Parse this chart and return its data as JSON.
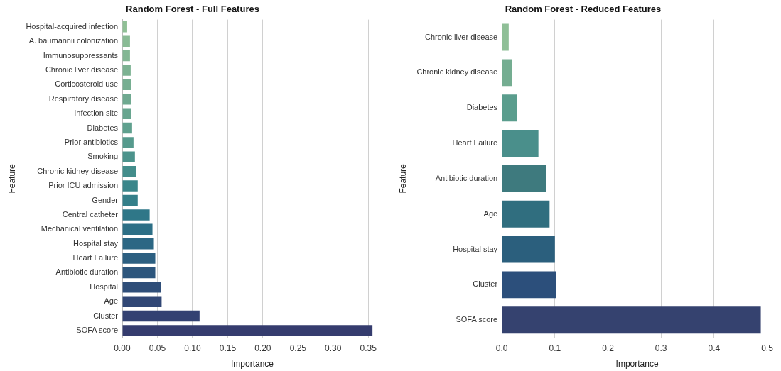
{
  "chart_data": [
    {
      "type": "bar",
      "orientation": "horizontal",
      "title": "Random Forest - Full Features",
      "xlabel": "Importance",
      "ylabel": "Feature",
      "grid": "x",
      "categories": [
        "Hospital-acquired infection",
        "A. baumannii colonization",
        "Immunosuppressants",
        "Chronic liver disease",
        "Corticosteroid use",
        "Respiratory disease",
        "Infection site",
        "Diabetes",
        "Prior antibiotics",
        "Smoking",
        "Chronic kidney disease",
        "Prior ICU admission",
        "Gender",
        "Central catheter",
        "Mechanical ventilation",
        "Hospital stay",
        "Heart Failure",
        "Antibiotic duration",
        "Hospital",
        "Age",
        "Cluster",
        "SOFA score"
      ],
      "values": [
        0.007,
        0.011,
        0.011,
        0.012,
        0.013,
        0.013,
        0.013,
        0.014,
        0.016,
        0.018,
        0.02,
        0.022,
        0.022,
        0.039,
        0.043,
        0.045,
        0.047,
        0.047,
        0.055,
        0.056,
        0.11,
        0.356
      ],
      "colors": [
        "#90c096",
        "#89bb95",
        "#83b794",
        "#7cb292",
        "#76ae91",
        "#6fa990",
        "#68a58f",
        "#5fa08e",
        "#569a8d",
        "#4c938c",
        "#438d8b",
        "#3a868a",
        "#347f89",
        "#2f7788",
        "#2d6f86",
        "#2c6784",
        "#2c5f81",
        "#2d567d",
        "#2f4e79",
        "#314775",
        "#334172",
        "#353c6e"
      ],
      "xlim": [
        0,
        0.37
      ],
      "xticks": [
        {
          "value": 0,
          "label": "0.00"
        },
        0.05,
        {
          "value": 0.1,
          "label": "0.10"
        },
        0.15,
        {
          "value": 0.2,
          "label": "0.20"
        },
        0.25,
        {
          "value": 0.3,
          "label": "0.30"
        },
        0.35
      ]
    },
    {
      "type": "bar",
      "orientation": "horizontal",
      "title": "Random Forest - Reduced Features",
      "xlabel": "Importance",
      "ylabel": "Feature",
      "grid": "x",
      "categories": [
        "Chronic liver disease",
        "Chronic kidney disease",
        "Diabetes",
        "Heart Failure",
        "Antibiotic duration",
        "Age",
        "Hospital stay",
        "Cluster",
        "SOFA score"
      ],
      "values": [
        0.013,
        0.019,
        0.028,
        0.069,
        0.083,
        0.09,
        0.1,
        0.102,
        0.488
      ],
      "colors": [
        "#8fbf97",
        "#74ad91",
        "#5a9d8d",
        "#4a8f8b",
        "#3e7a7e",
        "#306e7f",
        "#2b5f7d",
        "#2c4f7b",
        "#35426f"
      ],
      "xlim": [
        0,
        0.51
      ],
      "xticks": [
        {
          "value": 0,
          "label": "0.0"
        },
        0.1,
        0.2,
        0.3,
        0.4,
        0.5
      ]
    }
  ]
}
